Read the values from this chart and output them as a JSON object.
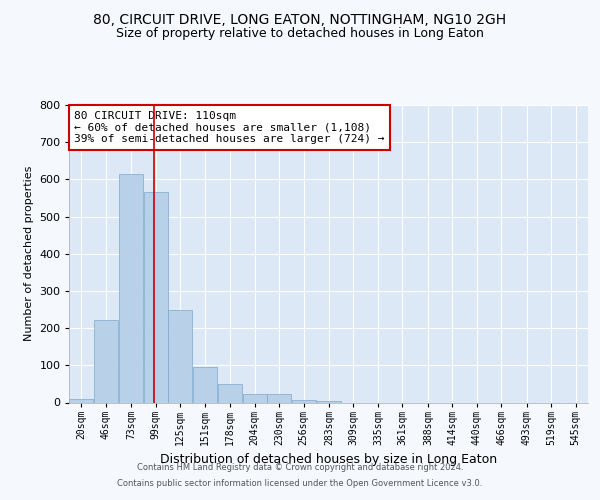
{
  "title1": "80, CIRCUIT DRIVE, LONG EATON, NOTTINGHAM, NG10 2GH",
  "title2": "Size of property relative to detached houses in Long Eaton",
  "xlabel": "Distribution of detached houses by size in Long Eaton",
  "ylabel": "Number of detached properties",
  "footer1": "Contains HM Land Registry data © Crown copyright and database right 2024.",
  "footer2": "Contains public sector information licensed under the Open Government Licence v3.0.",
  "annotation_line1": "80 CIRCUIT DRIVE: 110sqm",
  "annotation_line2": "← 60% of detached houses are smaller (1,108)",
  "annotation_line3": "39% of semi-detached houses are larger (724) →",
  "property_size": 110,
  "bar_color": "#b8d0e8",
  "bar_edge_color": "#7aaad0",
  "redline_color": "#cc0000",
  "plot_bg_color": "#dce8f5",
  "fig_bg_color": "#f5f8fd",
  "grid_color": "#ffffff",
  "categories": [
    "20sqm",
    "46sqm",
    "73sqm",
    "99sqm",
    "125sqm",
    "151sqm",
    "178sqm",
    "204sqm",
    "230sqm",
    "256sqm",
    "283sqm",
    "309sqm",
    "335sqm",
    "361sqm",
    "388sqm",
    "414sqm",
    "440sqm",
    "466sqm",
    "493sqm",
    "519sqm",
    "545sqm"
  ],
  "bin_starts": [
    20,
    46,
    73,
    99,
    125,
    151,
    178,
    204,
    230,
    256,
    283,
    309,
    335,
    361,
    388,
    414,
    440,
    466,
    493,
    519,
    545
  ],
  "bin_width": 26,
  "values": [
    10,
    222,
    615,
    565,
    248,
    95,
    50,
    22,
    22,
    8,
    5,
    0,
    0,
    0,
    0,
    0,
    0,
    0,
    0,
    0,
    0
  ],
  "ylim": [
    0,
    800
  ],
  "yticks": [
    0,
    100,
    200,
    300,
    400,
    500,
    600,
    700,
    800
  ],
  "annotation_box_facecolor": "#ffffff",
  "annotation_box_edgecolor": "#cc0000",
  "title_fontsize": 10,
  "subtitle_fontsize": 9,
  "ylabel_fontsize": 8,
  "xlabel_fontsize": 9,
  "tick_fontsize": 7,
  "footer_fontsize": 6,
  "annotation_fontsize": 8
}
